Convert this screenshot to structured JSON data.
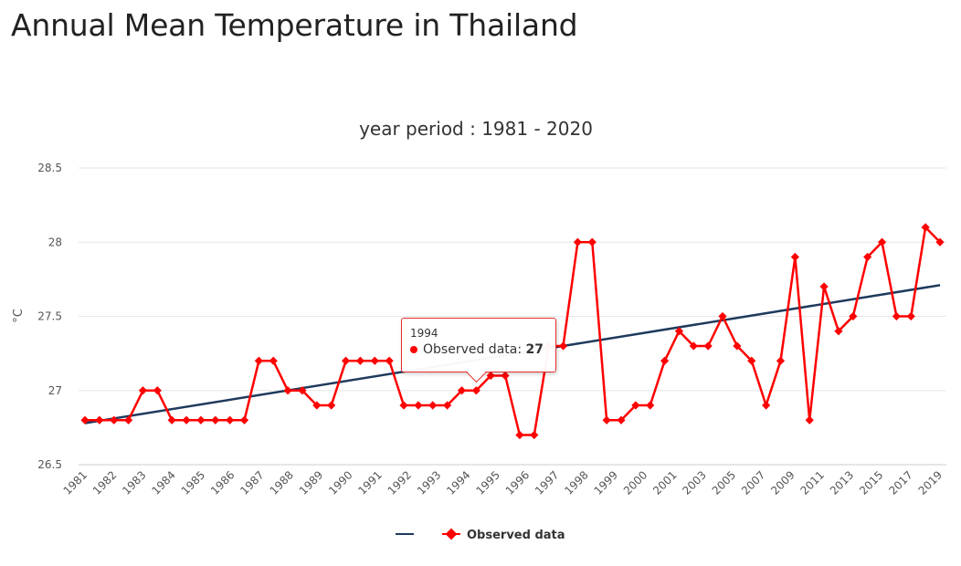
{
  "page": {
    "title": "Annual Mean Temperature in Thailand"
  },
  "chart_data": {
    "type": "line",
    "subtitle": "year period : 1981 - 2020",
    "ylabel": "°C",
    "xlabel": "",
    "ylim": [
      26.5,
      28.5
    ],
    "yticks": [
      "26.5",
      "27",
      "27.5",
      "28",
      "28.5"
    ],
    "grid": true,
    "legend_position": "bottom-center",
    "x_tick_labels": [
      "1981",
      "1982",
      "1983",
      "1984",
      "1985",
      "1986",
      "1987",
      "1988",
      "1989",
      "1990",
      "1991",
      "1992",
      "1993",
      "1994",
      "1995",
      "1996",
      "1997",
      "1998",
      "1999",
      "2000",
      "2001",
      "2003",
      "2005",
      "2007",
      "2009",
      "2011",
      "2013",
      "2015",
      "2017",
      "2019"
    ],
    "series": [
      {
        "name": "",
        "kind": "trend",
        "color": "#1f3a5c",
        "start": 26.78,
        "end": 27.71
      },
      {
        "name": "Observed data",
        "kind": "observed",
        "color": "#ff0000",
        "marker": "diamond",
        "values": [
          26.8,
          26.8,
          26.8,
          26.8,
          27.0,
          27.0,
          26.8,
          26.8,
          26.8,
          26.8,
          26.8,
          26.8,
          27.2,
          27.2,
          27.0,
          27.0,
          26.9,
          26.9,
          27.2,
          27.2,
          27.2,
          27.2,
          26.9,
          26.9,
          26.9,
          26.9,
          27.0,
          27.0,
          27.1,
          27.1,
          26.7,
          26.7,
          27.3,
          27.3,
          28.0,
          28.0,
          26.8,
          26.8,
          26.9,
          26.9,
          27.2,
          27.4,
          27.3,
          27.3,
          27.5,
          27.3,
          27.2,
          26.9,
          27.2,
          27.9,
          26.8,
          27.7,
          27.4,
          27.5,
          27.9,
          28.0,
          27.5,
          27.5,
          28.1,
          28.0
        ]
      }
    ],
    "tooltip": {
      "year": "1994",
      "series_label": "Observed data: ",
      "value": "27"
    }
  }
}
